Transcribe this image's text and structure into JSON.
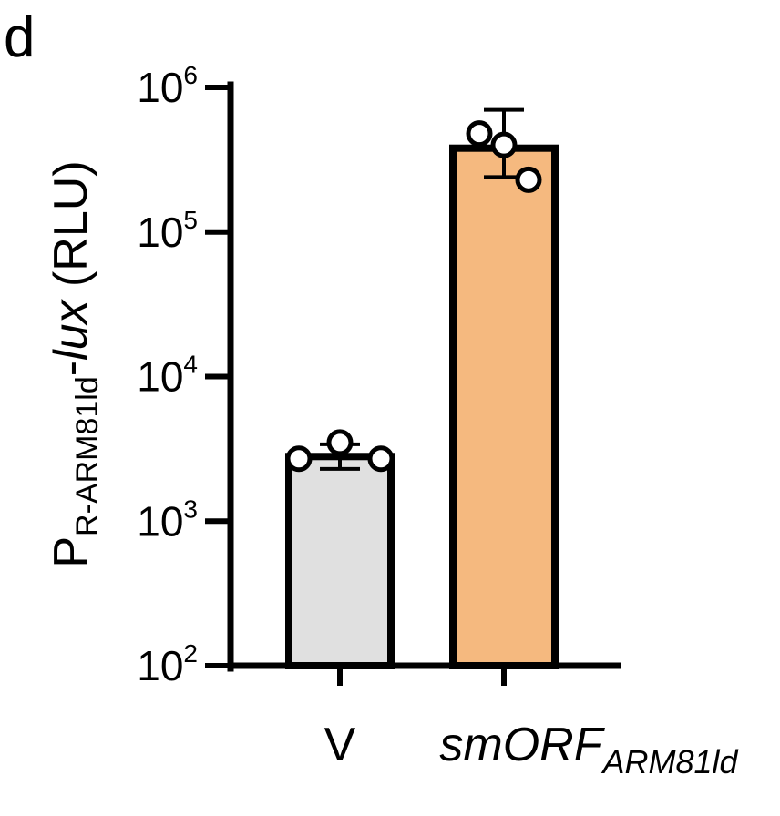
{
  "panel_letter": "d",
  "chart_data": {
    "type": "bar",
    "scale": "log",
    "ylim": [
      100,
      1000000
    ],
    "yticks": [
      {
        "value": 100,
        "base": "10",
        "exp": "2"
      },
      {
        "value": 1000,
        "base": "10",
        "exp": "3"
      },
      {
        "value": 10000,
        "base": "10",
        "exp": "4"
      },
      {
        "value": 100000,
        "base": "10",
        "exp": "5"
      },
      {
        "value": 1000000,
        "base": "10",
        "exp": "6"
      }
    ],
    "ylabel": {
      "main": "P",
      "subscript": "R-ARM81ld",
      "mid": "-",
      "italic": "lux",
      "suffix": " (RLU)"
    },
    "categories": [
      {
        "label": "V",
        "italic": "",
        "subscript": ""
      },
      {
        "label": "",
        "italic": "smORF",
        "subscript": "ARM81ld"
      }
    ],
    "values": [
      2800,
      380000
    ],
    "error": [
      {
        "low": 2300,
        "high": 3400
      },
      {
        "low": 240000,
        "high": 700000
      }
    ],
    "points": [
      [
        2700,
        3500,
        2700
      ],
      [
        480000,
        400000,
        230000
      ]
    ],
    "colors": [
      "#e0e0e0",
      "#f5b97f"
    ],
    "grid": false,
    "legend": "none"
  }
}
